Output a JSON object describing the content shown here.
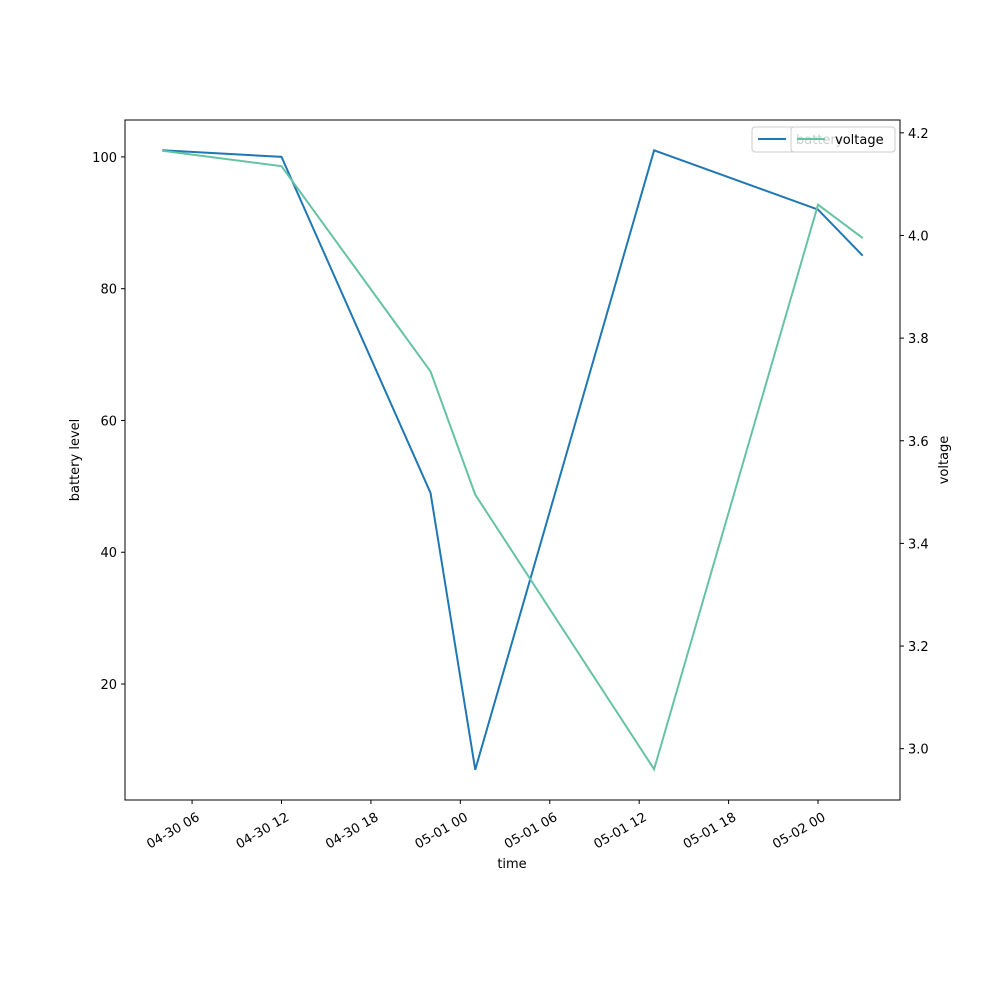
{
  "chart_data": {
    "type": "line",
    "xlabel": "time",
    "ylabel": "battery level",
    "y2label": "voltage",
    "x": [
      "04-30 04",
      "04-30 12",
      "04-30 22",
      "05-01 01",
      "05-01 13",
      "05-02 00",
      "05-02 03"
    ],
    "series": [
      {
        "name": "battery",
        "color": "#1f77b4",
        "values": [
          101,
          100,
          49,
          7,
          101,
          92,
          85
        ]
      },
      {
        "name": "voltage",
        "color": "#66c2a5",
        "axis": "y2",
        "values": [
          4.165,
          4.135,
          3.735,
          3.495,
          2.96,
          4.06,
          3.995
        ]
      }
    ],
    "xlim": [
      "04-30 01:30",
      "05-02 05:30"
    ],
    "xticks": [
      "04-30 06",
      "04-30 12",
      "04-30 18",
      "05-01 00",
      "05-01 06",
      "05-01 12",
      "05-01 18",
      "05-02 00"
    ],
    "ylim": [
      2.4,
      105.6
    ],
    "yticks": [
      20,
      40,
      60,
      80,
      100
    ],
    "y2lim": [
      2.9,
      4.225
    ],
    "y2ticks": [
      {
        "value": 3,
        "label": "3.0"
      },
      3.2,
      3.4,
      3.6,
      3.8,
      {
        "value": 4,
        "label": "4.0"
      },
      4.2
    ],
    "legend": "upper right"
  }
}
